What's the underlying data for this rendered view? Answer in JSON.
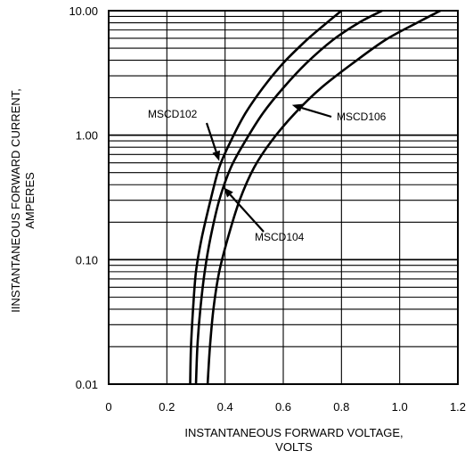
{
  "chart_data": {
    "type": "line",
    "title": "",
    "xlabel": [
      "INSTANTANEOUS FORWARD VOLTAGE,",
      "VOLTS"
    ],
    "ylabel": [
      "IINSTANTANEOUS FORWARD CURRENT,",
      "AMPERES"
    ],
    "xlim": [
      0,
      1.2
    ],
    "ylim": [
      0.01,
      10.0
    ],
    "yscale": "log",
    "grid": true,
    "x_ticks": [
      {
        "value": 0,
        "label": "0"
      },
      {
        "value": 0.2,
        "label": "0.2"
      },
      {
        "value": 0.4,
        "label": "0.4"
      },
      {
        "value": 0.6,
        "label": "0.6"
      },
      {
        "value": 0.8,
        "label": "0.8"
      },
      {
        "value": 1.0,
        "label": "1.0"
      },
      {
        "value": 1.2,
        "label": "1.2"
      }
    ],
    "y_ticks": [
      {
        "value": 0.01,
        "label": "0.01"
      },
      {
        "value": 0.1,
        "label": "0.10"
      },
      {
        "value": 1.0,
        "label": "1.00"
      },
      {
        "value": 10.0,
        "label": "10.00"
      }
    ],
    "series": [
      {
        "name": "MSCD102",
        "x": [
          0.28,
          0.283,
          0.29,
          0.3,
          0.32,
          0.35,
          0.38,
          0.42,
          0.47,
          0.53,
          0.6,
          0.68,
          0.75,
          0.8
        ],
        "y": [
          0.01,
          0.02,
          0.04,
          0.08,
          0.15,
          0.3,
          0.55,
          0.9,
          1.5,
          2.4,
          3.8,
          5.8,
          8.0,
          10.0
        ]
      },
      {
        "name": "MSCD104",
        "x": [
          0.3,
          0.305,
          0.315,
          0.33,
          0.35,
          0.38,
          0.42,
          0.47,
          0.53,
          0.6,
          0.68,
          0.77,
          0.86,
          0.94
        ],
        "y": [
          0.01,
          0.02,
          0.04,
          0.08,
          0.15,
          0.3,
          0.55,
          0.9,
          1.5,
          2.4,
          3.8,
          5.8,
          8.0,
          10.0
        ]
      },
      {
        "name": "MSCD106",
        "x": [
          0.34,
          0.348,
          0.36,
          0.38,
          0.41,
          0.45,
          0.5,
          0.56,
          0.64,
          0.73,
          0.84,
          0.95,
          1.06,
          1.14
        ],
        "y": [
          0.01,
          0.02,
          0.04,
          0.08,
          0.15,
          0.3,
          0.55,
          0.9,
          1.5,
          2.4,
          3.8,
          5.8,
          8.0,
          10.0
        ]
      }
    ],
    "annotations": [
      {
        "text": "MSCD102",
        "series": "MSCD102",
        "at": {
          "x": 0.38,
          "y": 0.62
        }
      },
      {
        "text": "MSCD104",
        "series": "MSCD104",
        "at": {
          "x": 0.395,
          "y": 0.38
        }
      },
      {
        "text": "MSCD106",
        "series": "MSCD106",
        "at": {
          "x": 0.63,
          "y": 1.75
        }
      }
    ]
  }
}
